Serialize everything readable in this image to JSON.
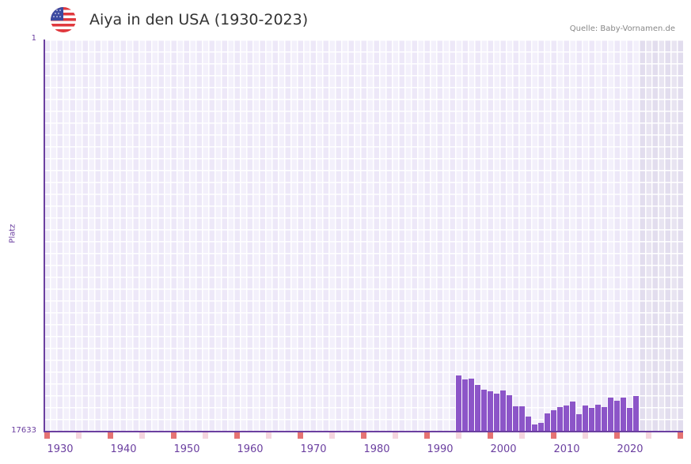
{
  "header": {
    "title": "Aiya in den USA (1930-2023)",
    "source": "Quelle: Baby-Vornamen.de",
    "flag_icon": "us-flag-icon"
  },
  "colors": {
    "bar": "#8c55c8",
    "axis": "#6b3fa0",
    "grid_a": "#ede8f8",
    "grid_b": "#f3f0fb",
    "future_a": "#e2ddee",
    "future_b": "#e8e4f1",
    "marker_decade": "#e57373",
    "marker_half": "#f5d5de"
  },
  "chart_data": {
    "type": "bar",
    "title": "Aiya in den USA (1930-2023)",
    "xlabel": "",
    "ylabel": "Platz",
    "y_inverted": true,
    "ylim": [
      1,
      17633
    ],
    "yticks": [
      "1",
      "17633"
    ],
    "xlim": [
      1928,
      2028
    ],
    "xticks": [
      "1930",
      "1940",
      "1950",
      "1960",
      "1970",
      "1980",
      "1990",
      "2000",
      "2010",
      "2020"
    ],
    "future_shaded_from": 2022,
    "grid": true,
    "categories": [
      1993,
      1994,
      1995,
      1996,
      1997,
      1998,
      1999,
      2000,
      2001,
      2002,
      2003,
      2004,
      2005,
      2006,
      2007,
      2008,
      2009,
      2010,
      2011,
      2012,
      2013,
      2014,
      2015,
      2016,
      2017,
      2018,
      2019,
      2020,
      2021
    ],
    "values": [
      15140,
      15318,
      15282,
      15567,
      15781,
      15852,
      15959,
      15816,
      16030,
      16529,
      16529,
      16992,
      17348,
      17277,
      16849,
      16707,
      16564,
      16493,
      16315,
      16885,
      16493,
      16600,
      16458,
      16564,
      16137,
      16279,
      16137,
      16600,
      16066
    ]
  },
  "axes": {
    "ylabel": "Platz",
    "ytop": "1",
    "ybottom": "17633"
  }
}
